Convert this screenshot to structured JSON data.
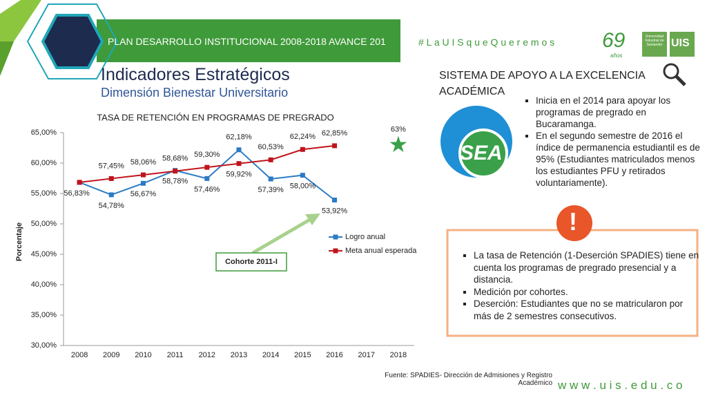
{
  "header": {
    "banner": "PLAN DESARROLLO INSTITUCIONAL 2008-2018 AVANCE 201",
    "hashtag": "# L a U I S q u e Q u e r e m o s",
    "logo_years": "69",
    "logo_years_sub": "años",
    "logo_university": "Universidad Industrial de Santander",
    "logo_uis": "UIS"
  },
  "title": "Indicadores Estratégicos",
  "subtitle": "Dimensión Bienestar Universitario",
  "sea": {
    "heading": "SISTEMA DE APOYO A LA EXCELENCIA ACADÉMICA",
    "logo": "SEA",
    "bullets": [
      "Inicia en el 2014 para apoyar los programas de pregrado en Bucaramanga.",
      "En el segundo semestre de 2016 el índice de permanencia estudiantil es de 95% (Estudiantes matriculados menos los estudiantes PFU y retirados voluntariamente)."
    ]
  },
  "notes": {
    "icon": "!",
    "bullets": [
      "La tasa de Retención (1-Deserción SPADIES) tiene en cuenta los programas de pregrado presencial y a distancia.",
      "Medición por cohortes.",
      "Deserción: Estudiantes que no se matricularon por más de 2 semestres consecutivos."
    ]
  },
  "footer": {
    "source": "Fuente: SPADIES- Dirección de Admisiones y Registro Académico",
    "url": "w w w . u i s . e d u . c o"
  },
  "chart_data": {
    "type": "line",
    "title": "TASA DE RETENCIÓN EN PROGRAMAS DE PREGRADO",
    "y_label": "Porcentaje",
    "categories": [
      "2008",
      "2009",
      "2010",
      "2011",
      "2012",
      "2013",
      "2014",
      "2015",
      "2016",
      "2017",
      "2018"
    ],
    "series": [
      {
        "name": "Logro anual",
        "color": "#2b7bc4",
        "values": [
          56.83,
          54.78,
          56.67,
          58.78,
          57.46,
          62.18,
          57.39,
          58.0,
          53.92,
          null,
          null
        ],
        "value_labels": [
          "56,83%",
          "54,78%",
          "56,67%",
          "58,78%",
          "57,46%",
          "62,18%",
          "57,39%",
          "58,00%",
          "53,92%",
          null,
          null
        ]
      },
      {
        "name": "Meta anual esperada",
        "color": "#c0141c",
        "values": [
          56.83,
          57.45,
          58.06,
          58.68,
          59.3,
          59.92,
          60.53,
          62.24,
          62.85,
          null,
          null
        ],
        "value_labels": [
          null,
          "57,45%",
          "58,06%",
          "58,68%",
          "59,30%",
          "59,92%",
          "60,53%",
          "62,24%",
          "62,85%",
          null,
          null
        ]
      }
    ],
    "target": {
      "category": "2018",
      "value": 63,
      "label": "63%",
      "color": "#3aa14a"
    },
    "annotation": "Cohorte 2011-I",
    "ylim": [
      30,
      65
    ],
    "yticks": [
      {
        "value": 30,
        "label": "30,00%"
      },
      {
        "value": 35,
        "label": "35,00%"
      },
      {
        "value": 40,
        "label": "40,00%"
      },
      {
        "value": 45,
        "label": "45,00%"
      },
      {
        "value": 50,
        "label": "50,00%"
      },
      {
        "value": 55,
        "label": "55,00%"
      },
      {
        "value": 60,
        "label": "60,00%"
      },
      {
        "value": 65,
        "label": "65,00%"
      }
    ],
    "grid": false,
    "legend": "right"
  }
}
